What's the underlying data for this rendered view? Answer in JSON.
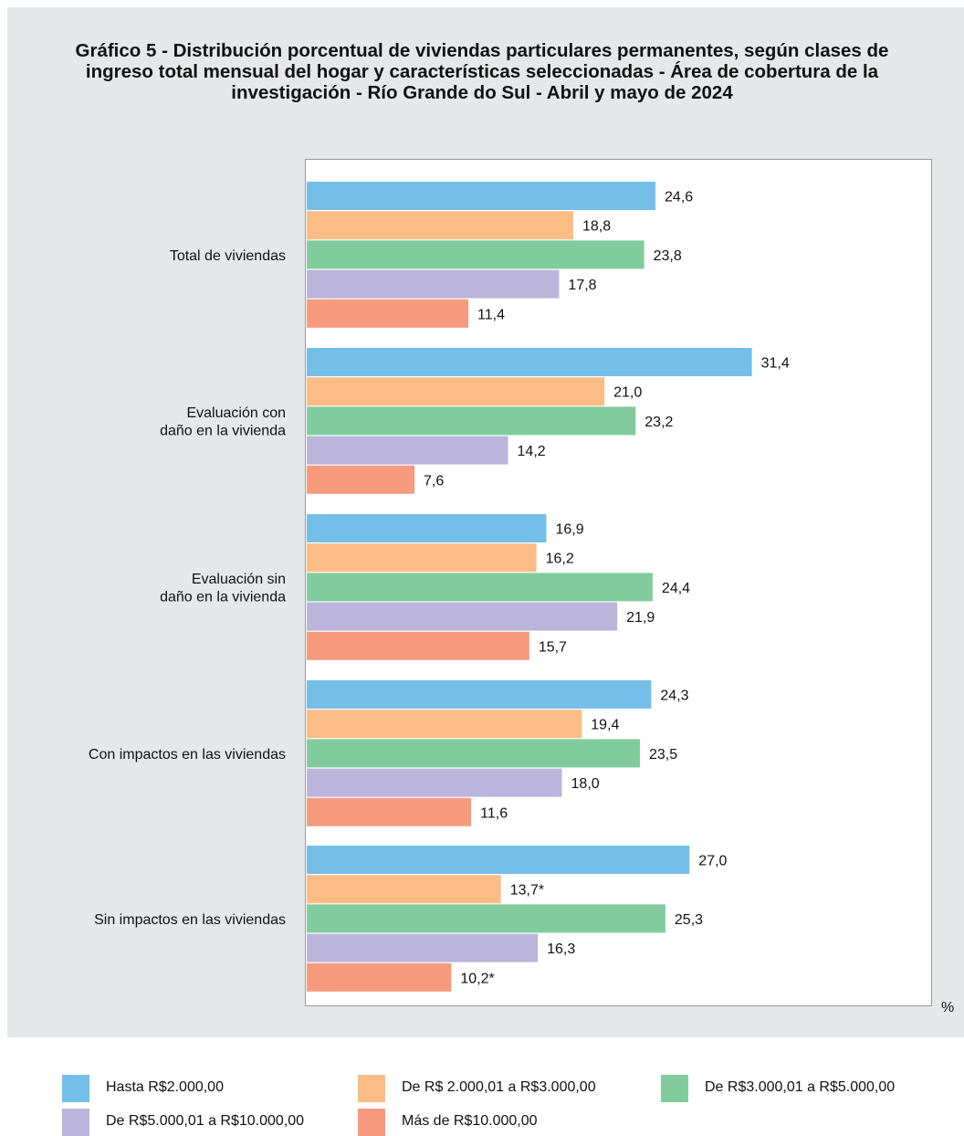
{
  "title": "Gráfico 5 - Distribución porcentual de viviendas particulares permanentes, según clases de ingreso total mensual del hogar y características seleccionadas - Área de cobertura de la investigación - Río Grande do Sul - Abril y mayo de 2024",
  "unit_label": "%",
  "colors": {
    "panel_background": "#e6e7e8",
    "plot_background": "#ffffff"
  },
  "chart_data": {
    "type": "bar",
    "orientation": "horizontal",
    "title": "Gráfico 5 - Distribución porcentual de viviendas particulares permanentes, según clases de ingreso total mensual del hogar y características seleccionadas - Área de cobertura de la investigación - Río Grande do Sul - Abril y mayo de 2024",
    "xlabel": "%",
    "ylabel": "",
    "xlim": [
      0,
      33.5
    ],
    "grid": false,
    "legend_position": "bottom",
    "categories": [
      [
        "Total de viviendas"
      ],
      [
        "Evaluación con",
        "daño en la vivienda"
      ],
      [
        "Evaluación sin",
        "daño en la vivienda"
      ],
      [
        "Con impactos en las viviendas"
      ],
      [
        "Sin impactos en las viviendas"
      ]
    ],
    "series": [
      {
        "name": "Hasta R$2.000,00",
        "color": "#74bfe8",
        "values": [
          24.6,
          31.4,
          16.9,
          24.3,
          27.0
        ],
        "labels": [
          "24,6",
          "31,4",
          "16,9",
          "24,3",
          "27,0"
        ]
      },
      {
        "name": "De R$ 2.000,01 a R$3.000,00",
        "color": "#fbbd85",
        "values": [
          18.8,
          21.0,
          16.2,
          19.4,
          13.7
        ],
        "labels": [
          "18,8",
          "21,0",
          "16,2",
          "19,4",
          "13,7*"
        ]
      },
      {
        "name": "De R$3.000,01 a R$5.000,00",
        "color": "#82cb9c",
        "values": [
          23.8,
          23.2,
          24.4,
          23.5,
          25.3
        ],
        "labels": [
          "23,8",
          "23,2",
          "24,4",
          "23,5",
          "25,3"
        ]
      },
      {
        "name": "De R$5.000,01 a R$10.000,00",
        "color": "#bbb5db",
        "values": [
          17.8,
          14.2,
          21.9,
          18.0,
          16.3
        ],
        "labels": [
          "17,8",
          "14,2",
          "21,9",
          "18,0",
          "16,3"
        ]
      },
      {
        "name": "Más de R$10.000,00",
        "color": "#f79a7e",
        "values": [
          11.4,
          7.6,
          15.7,
          11.6,
          10.2
        ],
        "labels": [
          "11,4",
          "7,6",
          "15,7",
          "11,6",
          "10,2*"
        ]
      }
    ]
  }
}
